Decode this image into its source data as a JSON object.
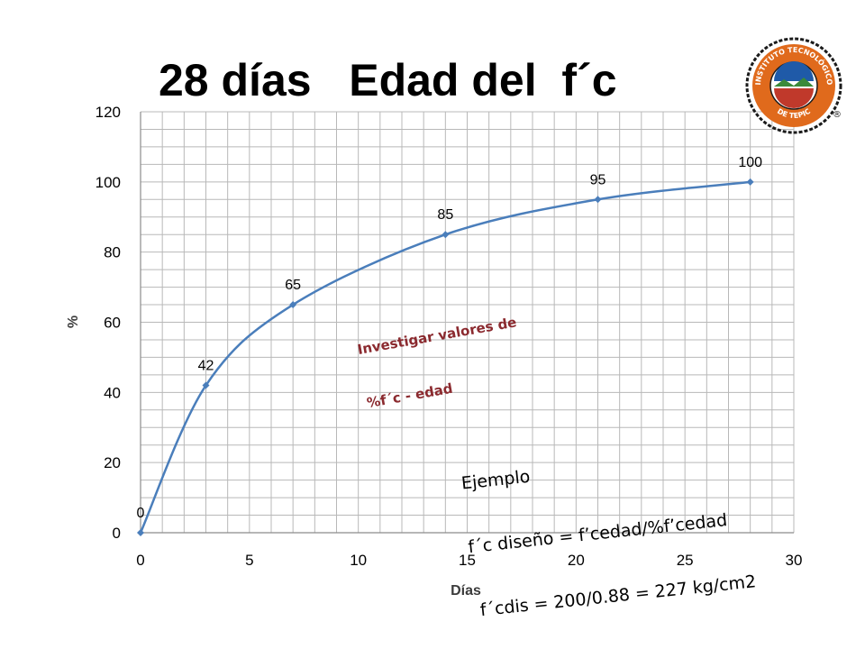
{
  "slide": {
    "title": "28 días   Edad del  f´c"
  },
  "logo": {
    "text_top": "INSTITUTO TECNOLÓGICO",
    "text_bottom": "DE TEPIC",
    "registered": "®",
    "colors": {
      "ring": "#1b1b1b",
      "orange": "#e06a1c",
      "blue": "#1f5aa8",
      "green": "#3a8a3a"
    }
  },
  "annotations": {
    "investigar": [
      "Investigar valores de",
      "%f´c - edad"
    ],
    "ejemplo": [
      "Ejemplo",
      "f´c diseño = f’cedad/%f’cedad",
      " f´cdis = 200/0.88 = 227 kg/cm2"
    ]
  },
  "chart_data": {
    "type": "line",
    "title": "",
    "xlabel": "Días",
    "ylabel": "%",
    "xlim": [
      0,
      30
    ],
    "ylim": [
      0,
      120
    ],
    "xticks": [
      0,
      5,
      10,
      15,
      20,
      25,
      30
    ],
    "yticks": [
      0,
      20,
      40,
      60,
      80,
      100,
      120
    ],
    "grid": true,
    "legend": "none",
    "color": "#4a7ebb",
    "series": [
      {
        "x": [
          0,
          3,
          7,
          14,
          21,
          28
        ],
        "y": [
          0,
          42,
          65,
          85,
          95,
          100
        ],
        "labels": [
          "0",
          "42",
          "65",
          "85",
          "95",
          "100"
        ]
      }
    ]
  }
}
